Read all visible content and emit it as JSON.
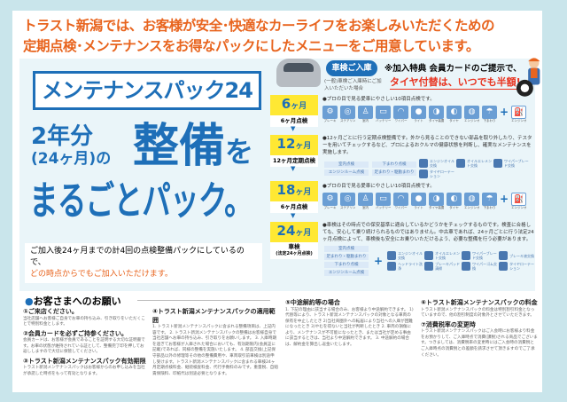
{
  "headline": {
    "line1": "トラスト新潟では、お客様が安全･快適なカーライフをお楽しみいただくための",
    "line2": "定期点検･メンテナンスをお得なパックにしたメニューをご用意しています。"
  },
  "hero": {
    "title": "メンテナンスパック24",
    "years": "2年分",
    "months": "(24ヶ月)の",
    "seibi": "整備",
    "wo": "を",
    "pack": "まるごとパック。",
    "note1": "ご加入後24ヶ月までの計4回の点検整備パックにしているので、",
    "note2": "どの時点からでもご加入いただけます。"
  },
  "entry": {
    "bubble": "車検ご入庫",
    "sub": "(一般)車検ご入庫時にご加入いただいた場合",
    "perk1": "※加入特典 会員カードのご提示で、",
    "perk2": "タイヤ付替は、いつでも半額!"
  },
  "steps": [
    {
      "month": "6",
      "unit": "ヶ月",
      "label": "6ヶ月点検",
      "desc": "●プロの目で見る愛車にやさしい10項目点検です。"
    },
    {
      "month": "12",
      "unit": "ヶ月",
      "label": "12ヶ月定期点検",
      "desc": "●12ヶ月ごとに行う定期点検整備です。外から見ることのできない部品を取り外したり、テスターを用いてチェックするなど、プロによるおクルマの健康状態を判断し、確実なメンテナンスを実施します。"
    },
    {
      "month": "18",
      "unit": "ヶ月",
      "label": "6ヶ月点検",
      "desc": "●プロの目で見る愛車にやさしい10項目点検です。"
    },
    {
      "month": "24",
      "unit": "ヶ月",
      "label": "車検",
      "sublabel": "(法定24ヶ月点検)",
      "desc": "●車検はその時点での保安基準に適合しているかどうかをチェックするものです。検査に合格しても、安心して乗り続けられるものではありません。中古車であれば、24ヶ月ごとに行う法定24ヶ月点検によって、車検後も安全にお乗りいただけるよう、必要な整備を行う必要があります。"
    }
  ],
  "icons10": [
    "ブレーキ",
    "ステアリング装置",
    "室内",
    "バッテリー",
    "ワイパー",
    "ライト",
    "タイヤ装置",
    "タイヤ",
    "エンジンオイル",
    "下まわり"
  ],
  "icon_extra": "エンジンオイル交換",
  "chips12": [
    "室内点検",
    "下まわり点検",
    "エンジンルーム点検",
    "足まわり・駆動まわり"
  ],
  "icons12": [
    "エンジンオイル交換",
    "オイルエレメント交換",
    "ワイパーブレード交換",
    "タイヤローテーション"
  ],
  "chips24": [
    "室内点検",
    "足まわり・駆動まわり",
    "下まわり点検",
    "エンジンルーム点検"
  ],
  "icons24": [
    "エンジンオイル交換",
    "オイルエレメント交換",
    "ワイパーブレード交換",
    "ブレーキ液交換",
    "ヘッドライト洗浄",
    "ブレーキパッド清掃",
    "ワイパーゴム交換",
    "タイヤローテーション"
  ],
  "notice": {
    "heading": "お客さまへのお願い",
    "items": [
      {
        "title": "①ご来店ください。",
        "body": "当社店舗へお客様ご自身でお車の持ち込み、引き取りをいただくことで特別料金とします。"
      },
      {
        "title": "②会員カードを必ずご持参ください。",
        "body": "会員カードは、お客様が会員であることを証明する大切な証明書です。お車の状態が維持されている証として、整備完了印を押してお返ししますので大切に保管してください。"
      },
      {
        "title": "③トラスト新潟メンテナンスパック有効期限",
        "body": "トラスト新潟メンテナンスパックはお客様からのお申し込みを当社が承諾した時点をもって有効となります。"
      },
      {
        "title": "④トラスト新潟メンテナンスパックの適用範囲",
        "body": "1. トラスト新潟メンテナンスパックに含まれる整備項目は、上記内容です。 2. トラスト新潟メンテナンスパックの整備はお客様自身で当社店舗へお車の持ち込み、引き取りをお願いします。 3. 入庫時期を過ぎてお客様が入庫された場合においても、有効期限内(会員証に記載)であれば、同様の整備を実施いたします。 4. 部品交換(上記保守部品以外の修理等その他の整備費用や、車両取引前車検は別途申し受けます。トラスト新潟メンテナンスパックに含まれる車検24ヶ月定期点検料金、継続検査料金、代行手数料のみです。重量税、自賠責保険料、印紙代は別途必要となります。"
      },
      {
        "title": "⑤中途解約等の場合",
        "body": "1. 下記の理由に該当する場合のみ、お客様より中途解約できます。 1)代替等により、トラスト新潟メンテナンスパックの対象となる車両の保有を中止したとき 2)当社商圏外への転居により当社への入庫が困難になったとき 3)やむを得ないと当社が判断したとき 2. 車両の損傷により、メンテナンスが不可能になったとき、または当社が定める事由に該当するときは、当社より中途解約できます。 3. 中途解約の場合は、解約金を算出し返金いたします。"
      },
      {
        "title": "⑥トラスト新潟メンテナンスパックの料金",
        "body": "トラスト新潟メンテナンスパックの料金は特別割引料金となっていますので、他の割引制度の対象外とさせていただきます。"
      },
      {
        "title": "⑦消費税率の変更時",
        "body": "トラスト新潟メンテナンスパックはご入会時にお客様より料金をお預かりして、ご入庫時点で消費(課税)される商品でございます。つきましては、消費税率の変更時にはご入会時の消費税とご入庫時点の消費税との差額を請求させて頂きますのでご了承ください。"
      }
    ]
  },
  "colors": {
    "brand_blue": "#1e6fb8",
    "orange": "#e8641e",
    "yellow": "#ffe833",
    "red": "#e8321e"
  }
}
